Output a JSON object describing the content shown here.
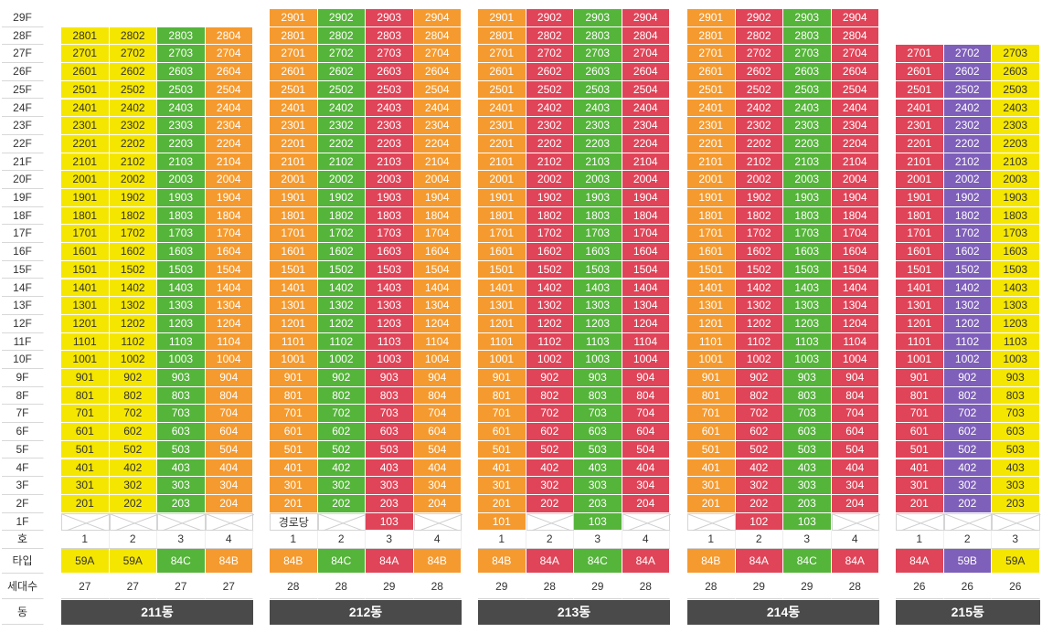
{
  "floor_labels": [
    "29F",
    "28F",
    "27F",
    "26F",
    "25F",
    "24F",
    "23F",
    "22F",
    "21F",
    "20F",
    "19F",
    "18F",
    "17F",
    "16F",
    "15F",
    "14F",
    "13F",
    "12F",
    "11F",
    "10F",
    "9F",
    "8F",
    "7F",
    "6F",
    "5F",
    "4F",
    "3F",
    "2F",
    "1F",
    "호",
    "타입",
    "세대수",
    "동"
  ],
  "colors": {
    "yellow": "#f5e600",
    "orange": "#f59a2e",
    "green": "#55b43a",
    "red": "#e04458",
    "purple": "#7e5fb9",
    "name_bg": "#4a4a4a"
  },
  "buildings": [
    {
      "name": "211동",
      "top_floor": 28,
      "lines": [
        {
          "ho": "1",
          "type": "59A",
          "count": "27",
          "color": "yellow",
          "f1": null
        },
        {
          "ho": "2",
          "type": "59A",
          "count": "27",
          "color": "yellow",
          "f1": null
        },
        {
          "ho": "3",
          "type": "84C",
          "count": "27",
          "color": "green",
          "f1": null
        },
        {
          "ho": "4",
          "type": "84B",
          "count": "27",
          "color": "orange",
          "f1": null
        }
      ]
    },
    {
      "name": "212동",
      "top_floor": 29,
      "lines": [
        {
          "ho": "1",
          "type": "84B",
          "count": "28",
          "color": "orange",
          "f1": "경로당",
          "f1_style": "hall"
        },
        {
          "ho": "2",
          "type": "84C",
          "count": "28",
          "color": "green",
          "f1": null
        },
        {
          "ho": "3",
          "type": "84A",
          "count": "29",
          "color": "red",
          "f1": "103"
        },
        {
          "ho": "4",
          "type": "84B",
          "count": "28",
          "color": "orange",
          "f1": null
        }
      ]
    },
    {
      "name": "213동",
      "top_floor": 29,
      "lines": [
        {
          "ho": "1",
          "type": "84B",
          "count": "29",
          "color": "orange",
          "f1": "101"
        },
        {
          "ho": "2",
          "type": "84A",
          "count": "28",
          "color": "red",
          "f1": null
        },
        {
          "ho": "3",
          "type": "84C",
          "count": "29",
          "color": "green",
          "f1": "103"
        },
        {
          "ho": "4",
          "type": "84A",
          "count": "28",
          "color": "red",
          "f1": null
        }
      ]
    },
    {
      "name": "214동",
      "top_floor": 29,
      "lines": [
        {
          "ho": "1",
          "type": "84B",
          "count": "28",
          "color": "orange",
          "f1": null
        },
        {
          "ho": "2",
          "type": "84A",
          "count": "29",
          "color": "red",
          "f1": "102"
        },
        {
          "ho": "3",
          "type": "84C",
          "count": "29",
          "color": "green",
          "f1": "103"
        },
        {
          "ho": "4",
          "type": "84A",
          "count": "28",
          "color": "red",
          "f1": null
        }
      ]
    },
    {
      "name": "215동",
      "top_floor": 27,
      "lines": [
        {
          "ho": "1",
          "type": "84A",
          "count": "26",
          "color": "red",
          "f1": null
        },
        {
          "ho": "2",
          "type": "59B",
          "count": "26",
          "color": "purple",
          "f1": null
        },
        {
          "ho": "3",
          "type": "59A",
          "count": "26",
          "color": "yellow",
          "f1": null
        }
      ]
    }
  ]
}
